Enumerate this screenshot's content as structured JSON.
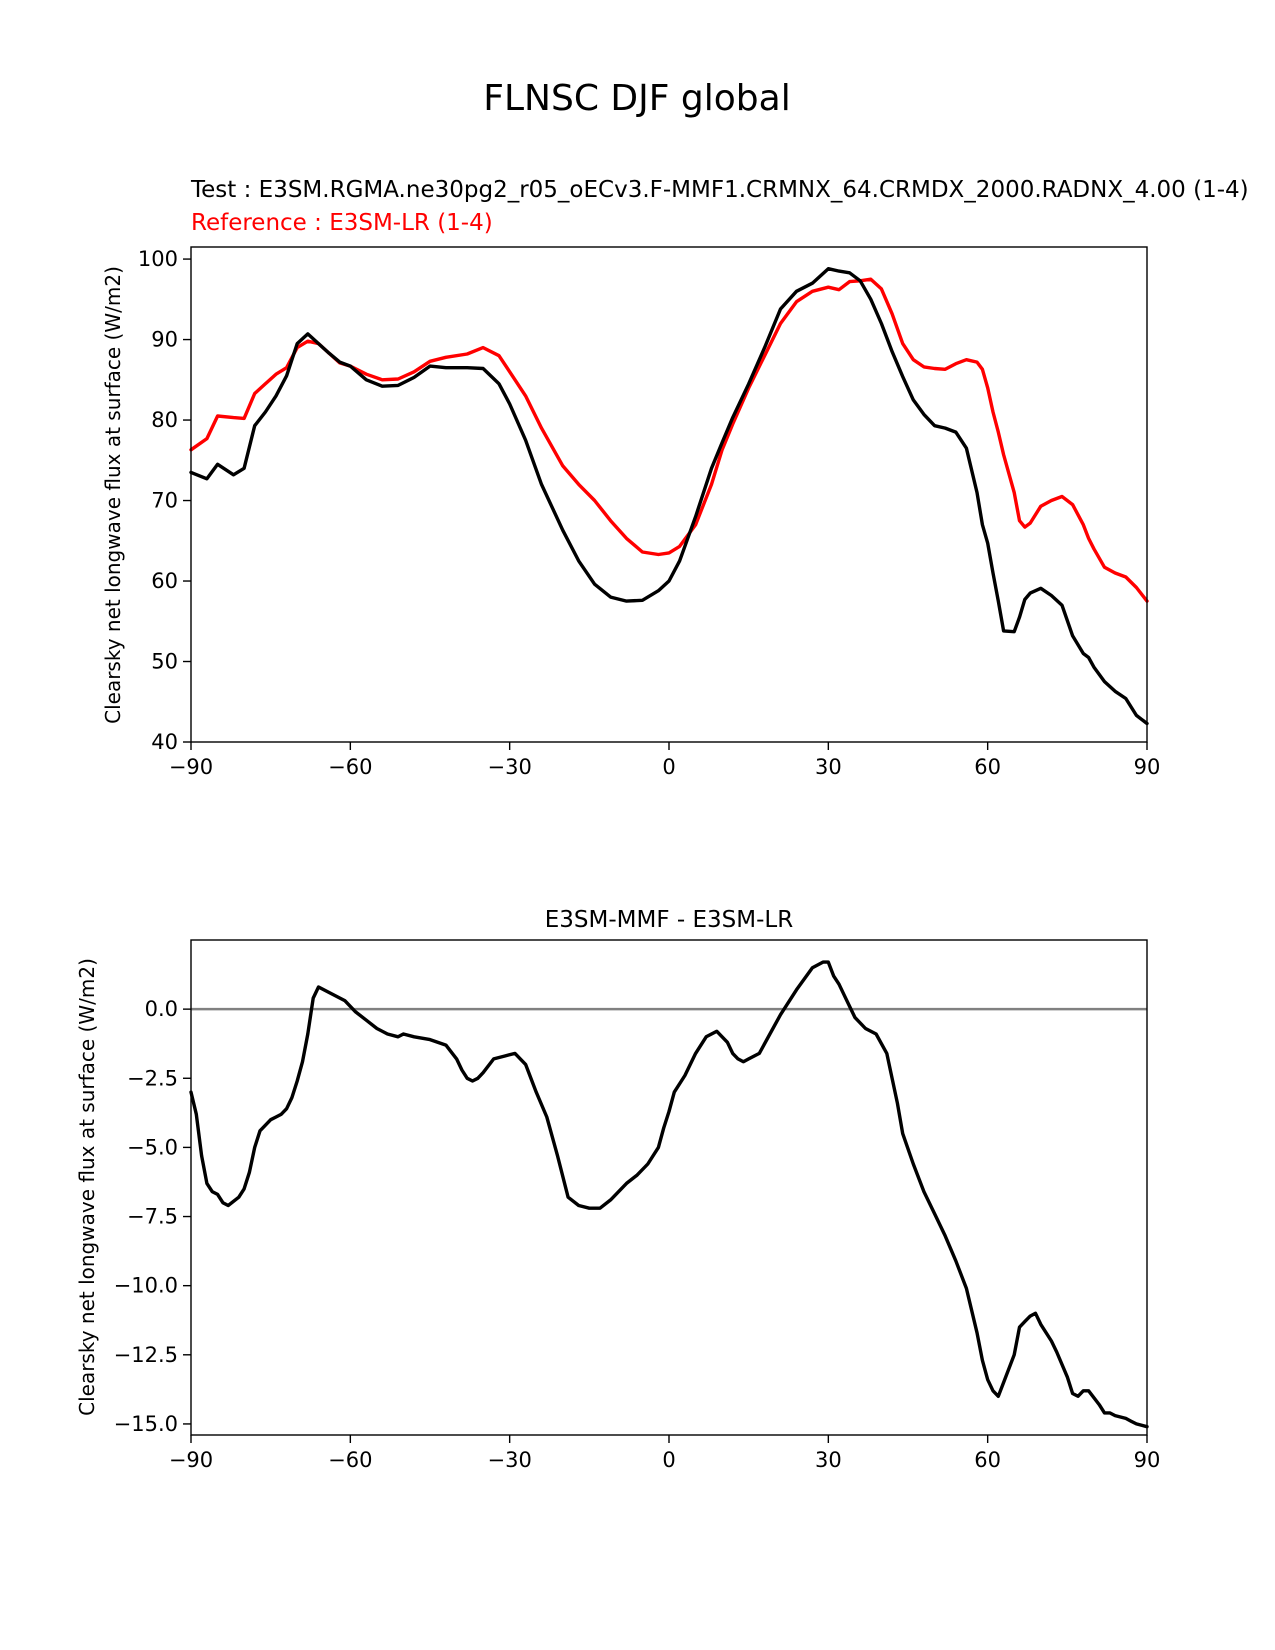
{
  "figure": {
    "suptitle": "FLNSC DJF global"
  },
  "colors": {
    "test": "#000000",
    "reference": "#ff0000",
    "zero_line": "#808080"
  },
  "chart_data": [
    {
      "type": "line",
      "test_label": "Test : E3SM.RGMA.ne30pg2_r05_oECv3.F-MMF1.CRMNX_64.CRMDX_2000.RADNX_4.00 (1-4)",
      "reference_label": "Reference : E3SM-LR (1-4)",
      "xlabel": "",
      "ylabel": "Clearsky net longwave flux at surface (W/m2)",
      "xlim": [
        -90,
        90
      ],
      "ylim": [
        40,
        101.5
      ],
      "xticks": [
        -90,
        -60,
        -30,
        0,
        30,
        60,
        90
      ],
      "xtick_labels": [
        "−90",
        "−60",
        "−30",
        "0",
        "30",
        "60",
        "90"
      ],
      "yticks": [
        40,
        50,
        60,
        70,
        80,
        90,
        100
      ],
      "ytick_labels": [
        "40",
        "50",
        "60",
        "70",
        "80",
        "90",
        "100"
      ],
      "x": [
        -90,
        -87,
        -85,
        -82,
        -80,
        -78,
        -76,
        -74,
        -72,
        -70,
        -68,
        -66,
        -64,
        -62,
        -60,
        -57,
        -54,
        -51,
        -48,
        -45,
        -42,
        -38,
        -35,
        -32,
        -30,
        -27,
        -24,
        -20,
        -17,
        -14,
        -11,
        -8,
        -5,
        -2,
        0,
        2,
        5,
        8,
        10,
        12,
        15,
        18,
        21,
        24,
        27,
        30,
        32,
        34,
        36,
        38,
        40,
        42,
        44,
        46,
        48,
        50,
        52,
        54,
        56,
        58,
        59,
        60,
        61,
        62,
        63,
        65,
        66,
        67,
        68,
        70,
        72,
        74,
        76,
        78,
        79,
        80,
        82,
        84,
        86,
        88,
        90
      ],
      "series": [
        {
          "name": "Test",
          "values": [
            73.5,
            72.7,
            74.5,
            73.2,
            74,
            79.3,
            81,
            83,
            85.5,
            89.5,
            90.7,
            89.5,
            88.3,
            87.2,
            86.7,
            85,
            84.2,
            84.3,
            85.3,
            86.7,
            86.5,
            86.5,
            86.4,
            84.5,
            82,
            77.5,
            72,
            66.3,
            62.5,
            59.6,
            58,
            57.5,
            57.6,
            58.8,
            60,
            62.5,
            68,
            74,
            77.2,
            80.3,
            84.5,
            89,
            93.8,
            96,
            97,
            98.8,
            98.5,
            98.3,
            97.3,
            95,
            92,
            88.5,
            85.4,
            82.5,
            80.7,
            79.3,
            79,
            78.5,
            76.5,
            71,
            67,
            64.7,
            61,
            57.5,
            53.8,
            53.7,
            55.5,
            57.7,
            58.5,
            59.1,
            58.2,
            57,
            53.2,
            51,
            50.5,
            49.3,
            47.5,
            46.3,
            45.4,
            43.3,
            42.3
          ]
        },
        {
          "name": "Reference",
          "values": [
            76.3,
            77.7,
            80.5,
            80.3,
            80.2,
            83.3,
            84.5,
            85.7,
            86.5,
            89,
            89.8,
            89.5,
            88.3,
            87.1,
            86.7,
            85.7,
            85,
            85.1,
            86,
            87.3,
            87.8,
            88.2,
            89,
            88,
            86,
            83,
            79,
            74.3,
            72,
            70,
            67.5,
            65.3,
            63.6,
            63.3,
            63.5,
            64.3,
            67,
            72,
            76.3,
            79.5,
            84,
            88,
            92,
            94.7,
            96,
            96.5,
            96.2,
            97.2,
            97.3,
            97.5,
            96.3,
            93.2,
            89.5,
            87.5,
            86.6,
            86.4,
            86.3,
            87,
            87.5,
            87.2,
            86.3,
            84,
            81,
            78.5,
            75.7,
            71,
            67.5,
            66.7,
            67.2,
            69.3,
            70,
            70.5,
            69.5,
            67,
            65.3,
            64,
            61.7,
            61,
            60.5,
            59.2,
            57.5
          ]
        }
      ]
    },
    {
      "type": "line",
      "title": "E3SM-MMF - E3SM-LR",
      "xlabel": "",
      "ylabel": "Clearsky net longwave flux at surface (W/m2)",
      "xlim": [
        -90,
        90
      ],
      "ylim": [
        -15.4,
        2.5
      ],
      "xticks": [
        -90,
        -60,
        -30,
        0,
        30,
        60,
        90
      ],
      "xtick_labels": [
        "−90",
        "−60",
        "−30",
        "0",
        "30",
        "60",
        "90"
      ],
      "yticks": [
        0,
        -2.5,
        -5,
        -7.5,
        -10,
        -12.5,
        -15
      ],
      "ytick_labels": [
        "0.0",
        "−2.5",
        "−5.0",
        "−7.5",
        "−10.0",
        "−12.5",
        "−15.0"
      ],
      "zero_line": 0,
      "x": [
        -90,
        -89,
        -88,
        -87,
        -86,
        -85,
        -84,
        -83,
        -81,
        -80,
        -79,
        -78,
        -77,
        -75,
        -74,
        -73,
        -72,
        -71,
        -70,
        -69,
        -68,
        -67,
        -66,
        -65,
        -63,
        -61,
        -59,
        -57,
        -55,
        -53,
        -51,
        -50,
        -48,
        -45,
        -42,
        -40,
        -39,
        -38,
        -37,
        -36,
        -35,
        -33,
        -31,
        -29,
        -27,
        -25,
        -23,
        -21,
        -19,
        -17,
        -15,
        -13,
        -11,
        -10,
        -8,
        -6,
        -4,
        -2,
        -1,
        0,
        1,
        3,
        5,
        7,
        9,
        10,
        11,
        12,
        13,
        14,
        15,
        17,
        19,
        21,
        24,
        27,
        29,
        30,
        31,
        32,
        33,
        34,
        35,
        37,
        39,
        41,
        42,
        43,
        44,
        46,
        48,
        50,
        52,
        54,
        56,
        58,
        59,
        60,
        61,
        62,
        63,
        65,
        66,
        67,
        68,
        69,
        70,
        72,
        73,
        75,
        76,
        77,
        78,
        79,
        81,
        82,
        83,
        84,
        86,
        87,
        88,
        90
      ],
      "series": [
        {
          "name": "E3SM-MMF - E3SM-LR",
          "values": [
            -3,
            -3.8,
            -5.3,
            -6.3,
            -6.6,
            -6.7,
            -7,
            -7.1,
            -6.8,
            -6.5,
            -5.9,
            -5,
            -4.4,
            -4,
            -3.9,
            -3.8,
            -3.6,
            -3.2,
            -2.6,
            -1.9,
            -0.9,
            0.4,
            0.8,
            0.7,
            0.5,
            0.3,
            -0.1,
            -0.4,
            -0.7,
            -0.9,
            -1.0,
            -0.9,
            -1.0,
            -1.1,
            -1.3,
            -1.8,
            -2.2,
            -2.5,
            -2.6,
            -2.5,
            -2.3,
            -1.8,
            -1.7,
            -1.6,
            -2.0,
            -3.0,
            -3.9,
            -5.3,
            -6.8,
            -7.1,
            -7.2,
            -7.2,
            -6.9,
            -6.7,
            -6.3,
            -6.0,
            -5.6,
            -5.0,
            -4.3,
            -3.7,
            -3.0,
            -2.4,
            -1.6,
            -1.0,
            -0.8,
            -1.0,
            -1.2,
            -1.6,
            -1.8,
            -1.9,
            -1.8,
            -1.6,
            -0.9,
            -0.2,
            0.7,
            1.5,
            1.7,
            1.7,
            1.2,
            0.9,
            0.5,
            0.1,
            -0.3,
            -0.7,
            -0.9,
            -1.6,
            -2.5,
            -3.4,
            -4.5,
            -5.6,
            -6.6,
            -7.4,
            -8.2,
            -9.1,
            -10.1,
            -11.7,
            -12.7,
            -13.4,
            -13.8,
            -14.0,
            -13.5,
            -12.5,
            -11.5,
            -11.3,
            -11.1,
            -11.0,
            -11.4,
            -12.0,
            -12.4,
            -13.3,
            -13.9,
            -14.0,
            -13.8,
            -13.8,
            -14.3,
            -14.6,
            -14.6,
            -14.7,
            -14.8,
            -14.9,
            -15.0,
            -15.1
          ]
        }
      ]
    }
  ]
}
